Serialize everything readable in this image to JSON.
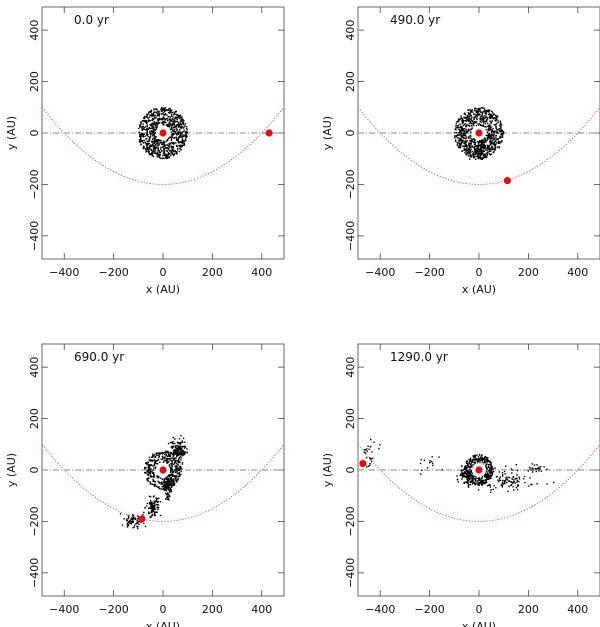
{
  "panel_layout": "2x2",
  "chart_data": [
    {
      "type": "scatter",
      "time_label": "0.0 yr",
      "xlabel": "x (AU)",
      "ylabel": "y (AU)",
      "xlim": [
        -490,
        490
      ],
      "ylim": [
        -490,
        490
      ],
      "xticks": [
        -400,
        -200,
        0,
        200,
        400
      ],
      "yticks": [
        -400,
        -200,
        0,
        200,
        400
      ],
      "xtick_labels": [
        "−400",
        "−200",
        "0",
        "200",
        "400"
      ],
      "ytick_labels": [
        "−400",
        "−200",
        "0",
        "200",
        "400"
      ],
      "star": {
        "x": 0,
        "y": 0
      },
      "perturber": {
        "x": 430,
        "y": 0
      },
      "orbit": {
        "type": "parabola",
        "pericenter": [
          0,
          -200
        ],
        "focus": [
          0,
          0
        ]
      },
      "reference_line_y": 0,
      "disk": {
        "inner_radius": 30,
        "outer_radius": 100,
        "particles": 900
      },
      "particle_groups": [],
      "colors": {
        "particles": "#000000",
        "star": "#dd1010",
        "orbit": "#ee3333",
        "reference_line": "#888888"
      }
    },
    {
      "type": "scatter",
      "time_label": "490.0 yr",
      "xlabel": "x (AU)",
      "ylabel": "y (AU)",
      "xlim": [
        -490,
        490
      ],
      "ylim": [
        -490,
        490
      ],
      "xticks": [
        -400,
        -200,
        0,
        200,
        400
      ],
      "yticks": [
        -400,
        -200,
        0,
        200,
        400
      ],
      "xtick_labels": [
        "−400",
        "−200",
        "0",
        "200",
        "400"
      ],
      "ytick_labels": [
        "−400",
        "−200",
        "0",
        "200",
        "400"
      ],
      "star": {
        "x": 0,
        "y": 0
      },
      "perturber": {
        "x": 115,
        "y": -185
      },
      "orbit": {
        "type": "parabola",
        "pericenter": [
          0,
          -200
        ],
        "focus": [
          0,
          0
        ]
      },
      "reference_line_y": 0,
      "disk": {
        "inner_radius": 30,
        "outer_radius": 100,
        "particles": 850
      },
      "particle_groups": [
        {
          "cx": 5,
          "cy": -60,
          "spread_x": 25,
          "spread_y": 35,
          "count": 90
        }
      ],
      "colors": {
        "particles": "#000000",
        "star": "#dd1010",
        "orbit": "#ee3333",
        "reference_line": "#888888"
      }
    },
    {
      "type": "scatter",
      "time_label": "690.0 yr",
      "xlabel": "x (AU)",
      "ylabel": "y (AU)",
      "xlim": [
        -490,
        490
      ],
      "ylim": [
        -490,
        490
      ],
      "xticks": [
        -400,
        -200,
        0,
        200,
        400
      ],
      "yticks": [
        -400,
        -200,
        0,
        200,
        400
      ],
      "xtick_labels": [
        "−400",
        "−200",
        "0",
        "200",
        "400"
      ],
      "ytick_labels": [
        "−400",
        "−200",
        "0",
        "200",
        "400"
      ],
      "star": {
        "x": 0,
        "y": 0
      },
      "perturber": {
        "x": -85,
        "y": -190
      },
      "orbit": {
        "type": "parabola",
        "pericenter": [
          0,
          -200
        ],
        "focus": [
          0,
          0
        ]
      },
      "reference_line_y": 0,
      "disk": {
        "inner_radius": 30,
        "outer_radius": 75,
        "particles": 420
      },
      "particle_groups": [
        {
          "cx": 60,
          "cy": 75,
          "spread_x": 30,
          "spread_y": 40,
          "count": 160
        },
        {
          "cx": 20,
          "cy": -60,
          "spread_x": 15,
          "spread_y": 40,
          "count": 120
        },
        {
          "cx": -40,
          "cy": -140,
          "spread_x": 25,
          "spread_y": 30,
          "count": 110
        },
        {
          "cx": -120,
          "cy": -200,
          "spread_x": 35,
          "spread_y": 25,
          "count": 70
        }
      ],
      "colors": {
        "particles": "#000000",
        "star": "#dd1010",
        "orbit": "#ee3333",
        "reference_line": "#888888"
      }
    },
    {
      "type": "scatter",
      "time_label": "1290.0 yr",
      "xlabel": "x (AU)",
      "ylabel": "y (AU)",
      "xlim": [
        -490,
        490
      ],
      "ylim": [
        -490,
        490
      ],
      "xticks": [
        -400,
        -200,
        0,
        200,
        400
      ],
      "yticks": [
        -400,
        -200,
        0,
        200,
        400
      ],
      "xtick_labels": [
        "−400",
        "−200",
        "0",
        "200",
        "400"
      ],
      "ytick_labels": [
        "−400",
        "−200",
        "0",
        "200",
        "400"
      ],
      "star": {
        "x": 0,
        "y": 0
      },
      "perturber": {
        "x": -470,
        "y": 25
      },
      "orbit": {
        "type": "parabola",
        "pericenter": [
          0,
          -200
        ],
        "focus": [
          0,
          0
        ]
      },
      "reference_line_y": 0,
      "disk": {
        "inner_radius": 25,
        "outer_radius": 60,
        "particles": 380
      },
      "particle_groups": [
        {
          "cx": -50,
          "cy": -20,
          "spread_x": 25,
          "spread_y": 35,
          "count": 80
        },
        {
          "cx": 110,
          "cy": -40,
          "spread_x": 90,
          "spread_y": 35,
          "count": 110
        },
        {
          "cx": 230,
          "cy": 5,
          "spread_x": 30,
          "spread_y": 15,
          "count": 25
        },
        {
          "cx": -440,
          "cy": 60,
          "spread_x": 25,
          "spread_y": 45,
          "count": 25
        },
        {
          "cx": -200,
          "cy": 20,
          "spread_x": 80,
          "spread_y": 40,
          "count": 15
        }
      ],
      "colors": {
        "particles": "#000000",
        "star": "#dd1010",
        "orbit": "#ee3333",
        "reference_line": "#888888"
      }
    }
  ]
}
